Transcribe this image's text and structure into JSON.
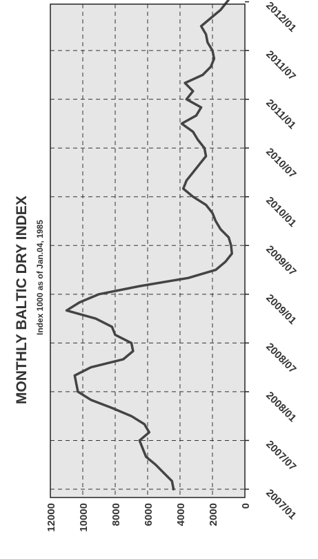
{
  "chart_data": {
    "type": "line",
    "title": "MONTHLY BALTIC DRY INDEX",
    "subtitle": "Index 1000 as of Jan.04, 1985",
    "xlabel": "",
    "ylabel": "",
    "ylim": [
      0,
      12000
    ],
    "yticks": [
      0,
      2000,
      4000,
      6000,
      8000,
      10000,
      12000
    ],
    "ytick_labels": [
      "0",
      "2000",
      "4000",
      "6000",
      "8000",
      "10000",
      "12000"
    ],
    "xticks": [
      "2007/01",
      "2007/07",
      "2008/01",
      "2008/07",
      "2009/01",
      "2009/07",
      "2010/01",
      "2010/07",
      "2011/01",
      "2011/07",
      "2012/01"
    ],
    "grid": true,
    "colors": {
      "line": "#444444",
      "plot_bg": "#e6e6e6",
      "grid": "#333333"
    },
    "series": [
      {
        "x": [
          "2007/01",
          "2007/02",
          "2007/03",
          "2007/04",
          "2007/05",
          "2007/06",
          "2007/07",
          "2007/08",
          "2007/09",
          "2007/10",
          "2007/11",
          "2007/12",
          "2008/01",
          "2008/02",
          "2008/03",
          "2008/04",
          "2008/05",
          "2008/06",
          "2008/07",
          "2008/08",
          "2008/09",
          "2008/10",
          "2008/11",
          "2008/12",
          "2009/01",
          "2009/02",
          "2009/03",
          "2009/04",
          "2009/05",
          "2009/06",
          "2009/07",
          "2009/08",
          "2009/09",
          "2009/10",
          "2009/11",
          "2009/12",
          "2010/01",
          "2010/02",
          "2010/03",
          "2010/04",
          "2010/05",
          "2010/06",
          "2010/07",
          "2010/08",
          "2010/09",
          "2010/10",
          "2010/11",
          "2010/12",
          "2011/01",
          "2011/02",
          "2011/03",
          "2011/04",
          "2011/05",
          "2011/06",
          "2011/07",
          "2011/08",
          "2011/09",
          "2011/10",
          "2011/11",
          "2011/12",
          "2012/01",
          "2012/02"
        ],
        "values": [
          4400,
          4500,
          5000,
          5500,
          6100,
          6300,
          6500,
          5900,
          6200,
          7000,
          8200,
          9500,
          10300,
          10400,
          10500,
          9500,
          7500,
          6900,
          7000,
          8000,
          8200,
          9200,
          11000,
          10200,
          9000,
          6500,
          3500,
          1800,
          1200,
          800,
          850,
          1000,
          1500,
          1800,
          2000,
          2400,
          3200,
          3800,
          3600,
          3200,
          2800,
          2400,
          2500,
          2900,
          3200,
          3900,
          3000,
          2700,
          3600,
          3200,
          3700,
          2600,
          2100,
          1900,
          2000,
          2300,
          2400,
          2700,
          2100,
          1500,
          1100,
          700
        ]
      }
    ]
  }
}
